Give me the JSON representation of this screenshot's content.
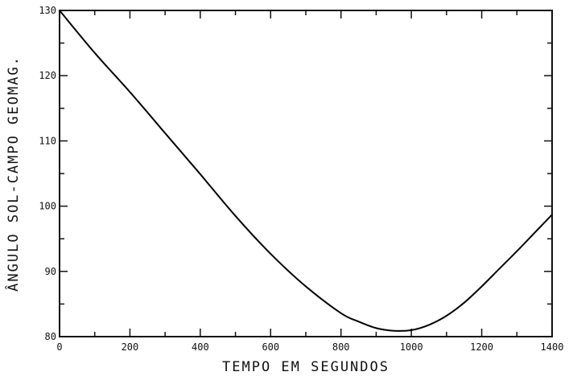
{
  "chart_data": {
    "type": "line",
    "title": "",
    "xlabel": "TEMPO EM SEGUNDOS",
    "ylabel": "ÂNGULO  SOL-CAMPO GEOMAG.",
    "xlim": [
      0,
      1400
    ],
    "ylim": [
      80,
      130
    ],
    "x_ticks": [
      "0",
      "200",
      "400",
      "600",
      "800",
      "1000",
      "1200",
      "1400"
    ],
    "y_ticks": [
      "80",
      "90",
      "100",
      "110",
      "120",
      "130"
    ],
    "grid": false,
    "legend": "none",
    "line_color": "#000000",
    "series": [
      {
        "x": [
          0,
          100,
          200,
          300,
          400,
          500,
          600,
          700,
          800,
          850,
          900,
          950,
          1000,
          1050,
          1100,
          1150,
          1200,
          1250,
          1300,
          1350,
          1400
        ],
        "y": [
          130,
          123.5,
          117.5,
          111.2,
          104.9,
          98.5,
          92.7,
          87.7,
          83.6,
          82.3,
          81.3,
          80.9,
          81.0,
          81.8,
          83.2,
          85.2,
          87.7,
          90.4,
          93.1,
          95.9,
          98.7
        ]
      }
    ]
  }
}
